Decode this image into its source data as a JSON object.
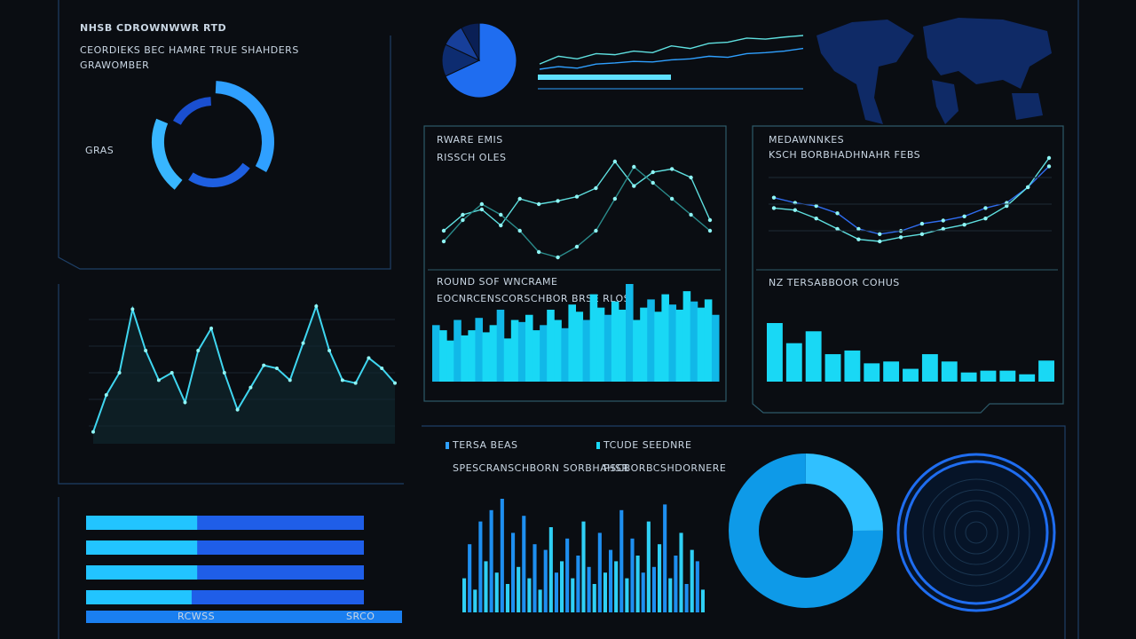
{
  "header": {
    "title": "NHSB CDROWNWWR RTD",
    "subtitle": "CEORDIEKS BEC HAMRE TRUE SHAHDERS",
    "note": "GRAWOMBER",
    "gauge_label": "GRAS"
  },
  "ring_gauge": {
    "values": [
      34,
      26,
      22,
      18
    ]
  },
  "pie": {
    "values": [
      68,
      14,
      10,
      8
    ]
  },
  "trend": {
    "series": [
      {
        "values": [
          20,
          35,
          30,
          40,
          38,
          45,
          42,
          55,
          50,
          60,
          62,
          70,
          68,
          72,
          75
        ]
      },
      {
        "values": [
          10,
          15,
          12,
          20,
          22,
          25,
          24,
          28,
          30,
          35,
          33,
          40,
          42,
          45,
          50
        ]
      }
    ]
  },
  "panel_a": {
    "title": "RWARE EMIS",
    "subtitle": "RISSCH OLES",
    "series": [
      {
        "color": "#5fe0e0",
        "values": [
          30,
          45,
          50,
          35,
          60,
          55,
          58,
          62,
          70,
          95,
          72,
          85,
          88,
          80,
          40
        ]
      },
      {
        "color": "#2a8a8a",
        "values": [
          20,
          40,
          55,
          45,
          30,
          10,
          5,
          15,
          30,
          60,
          90,
          75,
          60,
          45,
          30
        ]
      }
    ]
  },
  "panel_b": {
    "title": "MEDAWNNKES",
    "subtitle": "KSCH BORBHADHNAHR FEBS",
    "series": [
      {
        "color": "#2f6cf0",
        "values": [
          60,
          55,
          52,
          45,
          30,
          25,
          28,
          35,
          38,
          42,
          50,
          55,
          70,
          90
        ]
      },
      {
        "color": "#5fe0e0",
        "values": [
          50,
          48,
          40,
          30,
          20,
          18,
          22,
          25,
          30,
          34,
          40,
          52,
          70,
          98
        ]
      }
    ]
  },
  "panel_c": {
    "title": "ROUND SOF WNCRAME",
    "subtitle": "EOCNRCENSCORSCHBOR BRSE RLOS",
    "values": [
      55,
      50,
      40,
      60,
      45,
      50,
      62,
      48,
      55,
      70,
      42,
      60,
      58,
      65,
      50,
      55,
      70,
      60,
      52,
      75,
      68,
      60,
      85,
      72,
      65,
      78,
      70,
      95,
      60,
      72,
      80,
      68,
      85,
      75,
      70,
      88,
      78,
      72,
      80,
      65
    ]
  },
  "panel_d": {
    "title": "NZ TERSABBOOR COHUS",
    "values": [
      64,
      42,
      55,
      30,
      34,
      20,
      22,
      14,
      30,
      22,
      10,
      12,
      12,
      8,
      23
    ]
  },
  "wave": {
    "values": [
      5,
      30,
      45,
      88,
      60,
      40,
      45,
      25,
      60,
      75,
      45,
      20,
      35,
      50,
      48,
      40,
      65,
      90,
      60,
      40,
      38,
      55,
      48,
      38
    ]
  },
  "legend": {
    "items": [
      "TERSA BEAS",
      "TCUDE SEEDNRE"
    ],
    "captions": [
      "SPESCRANSCHBORN SORBHAHSR",
      "PSCBORBCSHDORNERE"
    ]
  },
  "progress": {
    "values": [
      40,
      40,
      40,
      38
    ],
    "footer": [
      "RCWSS",
      "SRCO"
    ]
  },
  "spikes": {
    "values": [
      30,
      60,
      20,
      80,
      45,
      90,
      35,
      100,
      25,
      70,
      40,
      85,
      30,
      60,
      20,
      55,
      75,
      35,
      45,
      65,
      30,
      50,
      80,
      40,
      25,
      70,
      35,
      55,
      45,
      90,
      30,
      65,
      50,
      35,
      80,
      40,
      60,
      95,
      30,
      50,
      70,
      25,
      55,
      45,
      20
    ]
  },
  "donut": {
    "values": [
      25,
      75
    ]
  }
}
